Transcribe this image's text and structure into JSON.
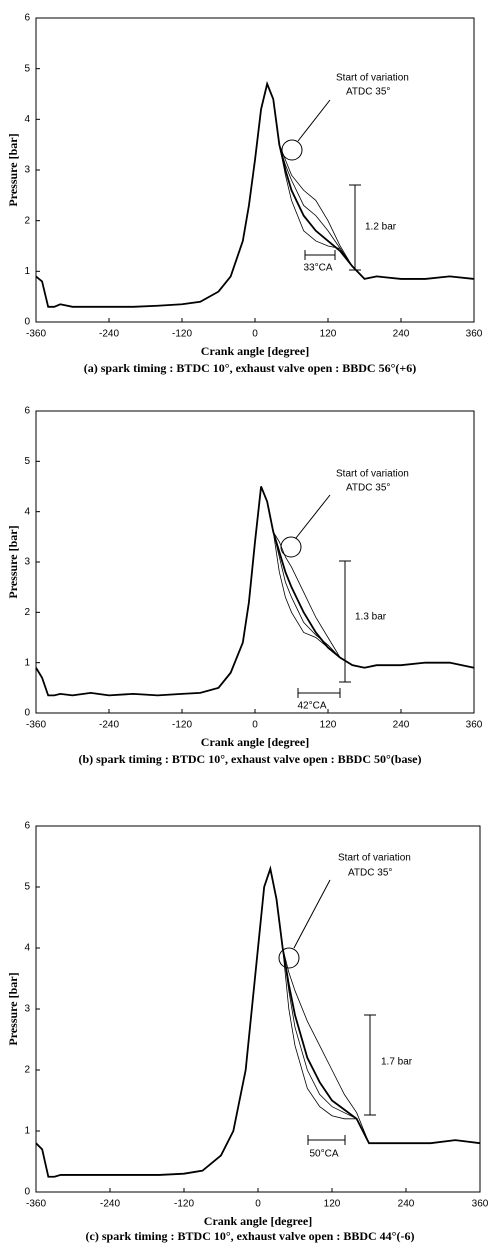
{
  "chart_data": [
    {
      "type": "line",
      "xlabel": "Crank angle [degree]",
      "ylabel": "Pressure [bar]",
      "caption": "(a) spark timing : BTDC 10°, exhaust valve open : BBDC 56°(+6)",
      "annotations": [
        "Start of variation",
        "ATDC 35°",
        "1.2 bar",
        "33°CA"
      ],
      "xlim": [
        -360,
        360
      ],
      "ylim": [
        0,
        6
      ],
      "xticks": [
        -360,
        -240,
        -120,
        0,
        120,
        240,
        360
      ],
      "yticks": [
        0,
        1,
        2,
        3,
        4,
        5,
        6
      ],
      "x": [
        -360,
        -350,
        -340,
        -330,
        -320,
        -300,
        -270,
        -240,
        -200,
        -160,
        -120,
        -90,
        -60,
        -40,
        -20,
        -10,
        0,
        10,
        20,
        30,
        40,
        50,
        60,
        80,
        100,
        120,
        140,
        160,
        180,
        200,
        240,
        280,
        320,
        360
      ],
      "series": [
        {
          "color": "#000000",
          "values": [
            0.9,
            0.8,
            0.3,
            0.3,
            0.35,
            0.3,
            0.3,
            0.3,
            0.3,
            0.32,
            0.35,
            0.4,
            0.6,
            0.9,
            1.6,
            2.3,
            3.2,
            4.2,
            4.7,
            4.4,
            3.5,
            3.0,
            2.6,
            2.1,
            1.8,
            1.6,
            1.4,
            1.1,
            0.85,
            0.9,
            0.85,
            0.85,
            0.9,
            0.85
          ]
        },
        {
          "color": "#000000",
          "values": [
            0.9,
            0.8,
            0.3,
            0.3,
            0.35,
            0.3,
            0.3,
            0.3,
            0.3,
            0.32,
            0.35,
            0.4,
            0.6,
            0.9,
            1.6,
            2.3,
            3.2,
            4.2,
            4.7,
            4.4,
            3.5,
            3.2,
            2.9,
            2.6,
            2.4,
            2.0,
            1.5,
            1.1,
            0.85,
            0.9,
            0.85,
            0.85,
            0.9,
            0.85
          ]
        },
        {
          "color": "#000000",
          "values": [
            0.9,
            0.8,
            0.3,
            0.3,
            0.35,
            0.3,
            0.3,
            0.3,
            0.3,
            0.32,
            0.35,
            0.4,
            0.6,
            0.9,
            1.6,
            2.3,
            3.2,
            4.2,
            4.7,
            4.4,
            3.5,
            3.1,
            2.8,
            2.3,
            2.1,
            1.8,
            1.45,
            1.1,
            0.85,
            0.9,
            0.85,
            0.85,
            0.9,
            0.85
          ]
        },
        {
          "color": "#000000",
          "values": [
            0.9,
            0.8,
            0.3,
            0.3,
            0.35,
            0.3,
            0.3,
            0.3,
            0.3,
            0.32,
            0.35,
            0.4,
            0.6,
            0.9,
            1.6,
            2.3,
            3.2,
            4.2,
            4.7,
            4.4,
            3.5,
            2.9,
            2.4,
            1.8,
            1.6,
            1.5,
            1.45,
            1.1,
            0.85,
            0.9,
            0.85,
            0.85,
            0.9,
            0.85
          ]
        }
      ]
    },
    {
      "type": "line",
      "xlabel": "Crank angle [degree]",
      "ylabel": "Pressure [bar]",
      "caption": "(b) spark timing : BTDC 10°, exhaust valve open : BBDC 50°(base)",
      "annotations": [
        "Start of variation",
        "ATDC 35°",
        "1.3 bar",
        "42°CA"
      ],
      "xlim": [
        -360,
        360
      ],
      "ylim": [
        0,
        6
      ],
      "xticks": [
        -360,
        -240,
        -120,
        0,
        120,
        240,
        360
      ],
      "yticks": [
        0,
        1,
        2,
        3,
        4,
        5,
        6
      ],
      "x": [
        -360,
        -350,
        -340,
        -330,
        -320,
        -300,
        -270,
        -240,
        -200,
        -160,
        -120,
        -90,
        -60,
        -40,
        -20,
        -10,
        0,
        10,
        20,
        30,
        40,
        50,
        60,
        80,
        100,
        120,
        140,
        160,
        180,
        200,
        240,
        280,
        320,
        360
      ],
      "series": [
        {
          "color": "#000000",
          "values": [
            0.9,
            0.7,
            0.35,
            0.35,
            0.38,
            0.35,
            0.4,
            0.35,
            0.38,
            0.35,
            0.38,
            0.4,
            0.5,
            0.8,
            1.4,
            2.2,
            3.4,
            4.5,
            4.2,
            3.6,
            3.2,
            2.8,
            2.5,
            2.0,
            1.6,
            1.3,
            1.1,
            0.95,
            0.9,
            0.95,
            0.95,
            1.0,
            1.0,
            0.9
          ]
        },
        {
          "color": "#000000",
          "values": [
            0.9,
            0.7,
            0.35,
            0.35,
            0.38,
            0.35,
            0.4,
            0.35,
            0.38,
            0.35,
            0.38,
            0.4,
            0.5,
            0.8,
            1.4,
            2.2,
            3.4,
            4.5,
            4.2,
            3.6,
            3.4,
            3.1,
            2.9,
            2.4,
            1.9,
            1.5,
            1.1,
            0.95,
            0.9,
            0.95,
            0.95,
            1.0,
            1.0,
            0.9
          ]
        },
        {
          "color": "#000000",
          "values": [
            0.9,
            0.7,
            0.35,
            0.35,
            0.38,
            0.35,
            0.4,
            0.35,
            0.38,
            0.35,
            0.38,
            0.4,
            0.5,
            0.8,
            1.4,
            2.2,
            3.4,
            4.5,
            4.2,
            3.6,
            3.1,
            2.6,
            2.3,
            1.8,
            1.55,
            1.35,
            1.1,
            0.95,
            0.9,
            0.95,
            0.95,
            1.0,
            1.0,
            0.9
          ]
        },
        {
          "color": "#000000",
          "values": [
            0.9,
            0.7,
            0.35,
            0.35,
            0.38,
            0.35,
            0.4,
            0.35,
            0.38,
            0.35,
            0.38,
            0.4,
            0.5,
            0.8,
            1.4,
            2.2,
            3.4,
            4.5,
            4.2,
            3.6,
            2.8,
            2.3,
            2.0,
            1.6,
            1.5,
            1.3,
            1.1,
            0.95,
            0.9,
            0.95,
            0.95,
            1.0,
            1.0,
            0.9
          ]
        }
      ]
    },
    {
      "type": "line",
      "xlabel": "Crank angle [degree]",
      "ylabel": "Pressure [bar]",
      "caption": "(c) spark timing : BTDC 10°, exhaust valve open : BBDC 44°(-6)",
      "annotations": [
        "Start of variation",
        "ATDC 35°",
        "1.7 bar",
        "50°CA"
      ],
      "xlim": [
        -360,
        360
      ],
      "ylim": [
        0,
        6
      ],
      "xticks": [
        -360,
        -240,
        -120,
        0,
        120,
        240,
        360
      ],
      "yticks": [
        0,
        1,
        2,
        3,
        4,
        5,
        6
      ],
      "x": [
        -360,
        -350,
        -340,
        -330,
        -320,
        -300,
        -270,
        -240,
        -200,
        -160,
        -120,
        -90,
        -60,
        -40,
        -20,
        -10,
        0,
        10,
        20,
        30,
        40,
        50,
        60,
        80,
        100,
        120,
        140,
        160,
        180,
        200,
        240,
        280,
        320,
        360
      ],
      "series": [
        {
          "color": "#000000",
          "values": [
            0.8,
            0.7,
            0.25,
            0.25,
            0.28,
            0.28,
            0.28,
            0.28,
            0.28,
            0.28,
            0.3,
            0.35,
            0.6,
            1.0,
            2.0,
            3.0,
            4.0,
            5.0,
            5.3,
            4.8,
            4.0,
            3.4,
            2.9,
            2.2,
            1.8,
            1.5,
            1.35,
            1.2,
            0.8,
            0.8,
            0.8,
            0.8,
            0.85,
            0.8
          ]
        },
        {
          "color": "#000000",
          "values": [
            0.8,
            0.7,
            0.25,
            0.25,
            0.28,
            0.28,
            0.28,
            0.28,
            0.28,
            0.28,
            0.3,
            0.35,
            0.6,
            1.0,
            2.0,
            3.0,
            4.0,
            5.0,
            5.3,
            4.8,
            4.0,
            3.6,
            3.3,
            2.8,
            2.4,
            2.0,
            1.6,
            1.3,
            0.8,
            0.8,
            0.8,
            0.8,
            0.85,
            0.8
          ]
        },
        {
          "color": "#000000",
          "values": [
            0.8,
            0.7,
            0.25,
            0.25,
            0.28,
            0.28,
            0.28,
            0.28,
            0.28,
            0.28,
            0.3,
            0.35,
            0.6,
            1.0,
            2.0,
            3.0,
            4.0,
            5.0,
            5.3,
            4.8,
            4.0,
            3.3,
            2.7,
            2.0,
            1.6,
            1.4,
            1.3,
            1.2,
            0.8,
            0.8,
            0.8,
            0.8,
            0.85,
            0.8
          ]
        },
        {
          "color": "#000000",
          "values": [
            0.8,
            0.7,
            0.25,
            0.25,
            0.28,
            0.28,
            0.28,
            0.28,
            0.28,
            0.28,
            0.3,
            0.35,
            0.6,
            1.0,
            2.0,
            3.0,
            4.0,
            5.0,
            5.3,
            4.8,
            4.0,
            3.0,
            2.4,
            1.7,
            1.4,
            1.25,
            1.2,
            1.2,
            0.8,
            0.8,
            0.8,
            0.8,
            0.85,
            0.8
          ]
        }
      ]
    }
  ]
}
